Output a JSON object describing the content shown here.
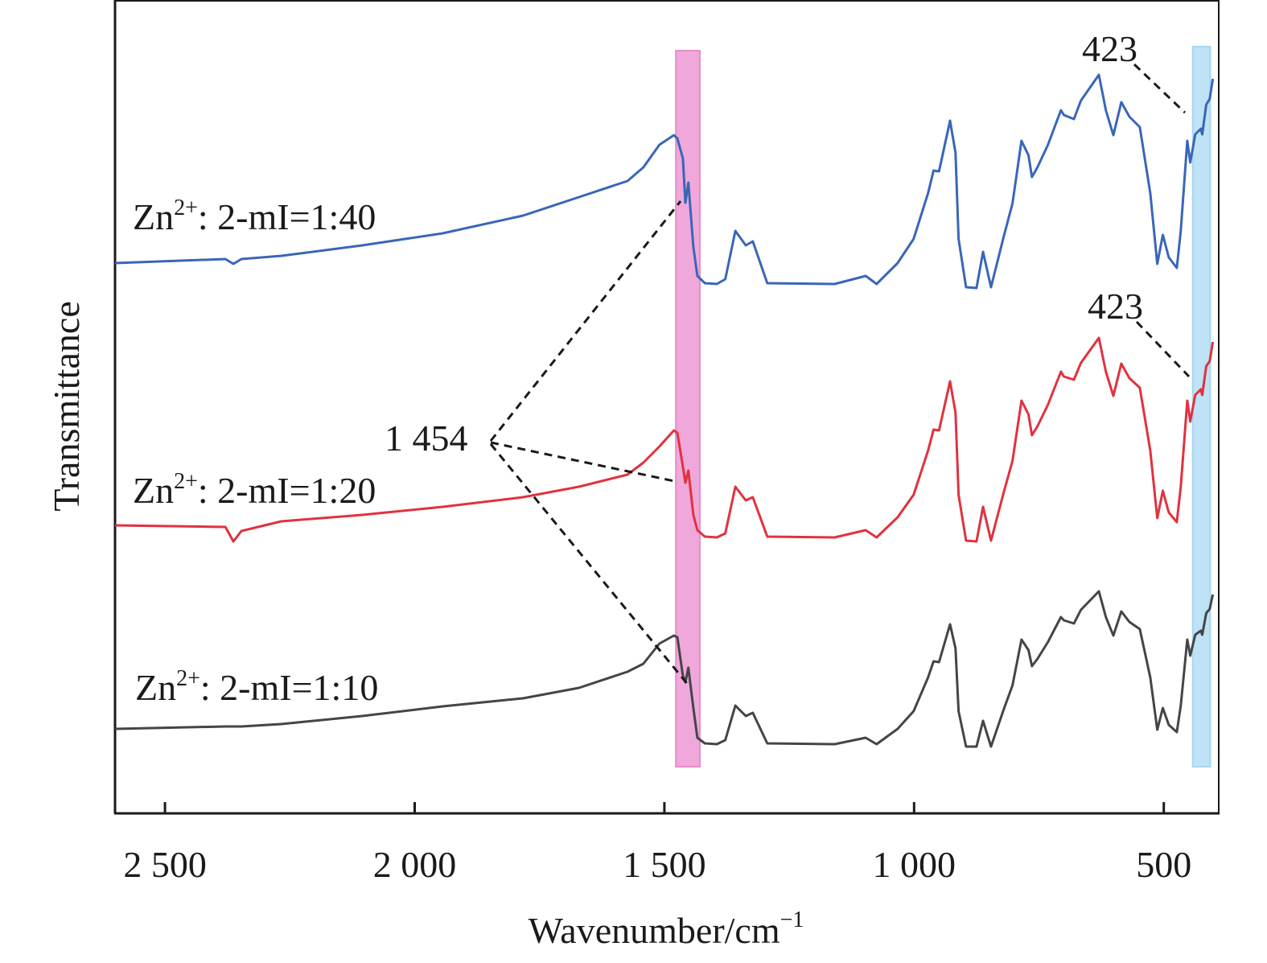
{
  "chart_data": {
    "type": "line",
    "title": "",
    "xlabel": {
      "base": "Wavenumber/cm",
      "sup": "−1"
    },
    "ylabel": "Transmittance",
    "xlim": [
      2600,
      390
    ],
    "x_reversed": true,
    "ylim": [
      0,
      101
    ],
    "y_units": "arbitrary (offset traces)",
    "grid": false,
    "x_ticks": [
      {
        "value": 2500,
        "label": "2 500"
      },
      {
        "value": 2000,
        "label": "2 000"
      },
      {
        "value": 1500,
        "label": "1 500"
      },
      {
        "value": 1000,
        "label": "1 000"
      },
      {
        "value": 500,
        "label": "500"
      }
    ],
    "x": [
      2600,
      2379,
      2363,
      2347,
      2267,
      2105,
      1944,
      1783,
      1671,
      1574,
      1542,
      1510,
      1481,
      1474,
      1463,
      1458,
      1452,
      1442,
      1434,
      1419,
      1395,
      1378,
      1358,
      1337,
      1323,
      1294,
      1159,
      1097,
      1075,
      1033,
      1001,
      972,
      961,
      950,
      928,
      917,
      911,
      896,
      875,
      862,
      846,
      820,
      803,
      785,
      771,
      764,
      753,
      732,
      706,
      700,
      680,
      666,
      630,
      616,
      601,
      585,
      569,
      548,
      527,
      513,
      502,
      490,
      474,
      466,
      453,
      447,
      437,
      426,
      423,
      415,
      408,
      402
    ],
    "series": [
      {
        "name": "Zn2+: 2-mI=1:40",
        "label": {
          "base": "Zn",
          "sup": "2+",
          "rest": ": 2-mI=1:40"
        },
        "color": "#3a66b8",
        "values": [
          68.3,
          68.8,
          68.2,
          68.8,
          69.2,
          70.5,
          72.0,
          74.2,
          76.5,
          78.5,
          80.2,
          83.0,
          84.2,
          83.8,
          81.3,
          75.8,
          78.3,
          70.3,
          66.7,
          65.8,
          65.7,
          66.3,
          72.3,
          70.5,
          71.0,
          65.8,
          65.7,
          66.7,
          65.7,
          68.3,
          71.3,
          77.0,
          79.8,
          79.7,
          86.0,
          82.0,
          71.3,
          65.3,
          65.2,
          69.7,
          65.3,
          71.7,
          75.7,
          83.5,
          81.7,
          79.0,
          80.2,
          83.0,
          87.3,
          86.7,
          86.2,
          88.5,
          91.7,
          87.3,
          84.2,
          88.3,
          86.5,
          85.2,
          77.0,
          68.2,
          71.8,
          69.0,
          67.7,
          72.3,
          83.5,
          80.8,
          84.3,
          85.0,
          84.3,
          88.0,
          88.7,
          91.2
        ]
      },
      {
        "name": "Zn2+: 2-mI=1:20",
        "label": {
          "base": "Zn",
          "sup": "2+",
          "rest": ": 2-mI=1:20"
        },
        "color": "#e0323f",
        "values": [
          35.7,
          35.5,
          33.7,
          35.0,
          36.2,
          37.0,
          38.0,
          39.2,
          40.5,
          42.0,
          43.5,
          45.5,
          47.5,
          47.2,
          43.0,
          41.0,
          42.5,
          37.0,
          35.1,
          34.3,
          34.2,
          34.7,
          40.5,
          38.8,
          39.2,
          34.3,
          34.2,
          35.1,
          34.2,
          36.7,
          39.5,
          45.0,
          47.6,
          47.5,
          53.6,
          49.7,
          39.5,
          33.8,
          33.7,
          38.0,
          33.8,
          39.9,
          43.7,
          51.2,
          49.5,
          46.9,
          48.0,
          50.7,
          54.8,
          54.2,
          53.8,
          55.9,
          59.0,
          54.8,
          51.8,
          55.8,
          54.0,
          52.8,
          45.0,
          36.6,
          40.0,
          37.3,
          36.1,
          40.5,
          51.2,
          48.6,
          51.9,
          52.6,
          51.9,
          55.5,
          56.1,
          58.5
        ]
      },
      {
        "name": "Zn2+: 2-mI=1:10",
        "label": {
          "base": "Zn",
          "sup": "2+",
          "rest": ": 2-mI=1:10"
        },
        "color": "#454548",
        "values": [
          10.4,
          10.7,
          10.7,
          10.7,
          11.0,
          12.0,
          13.2,
          14.2,
          15.5,
          17.5,
          18.5,
          21.0,
          22.0,
          21.8,
          17.0,
          16.2,
          18.0,
          13.0,
          9.3,
          8.6,
          8.5,
          9.0,
          13.3,
          12.0,
          12.4,
          8.6,
          8.5,
          9.3,
          8.5,
          10.4,
          12.6,
          16.8,
          18.8,
          18.7,
          23.4,
          20.4,
          12.6,
          8.2,
          8.2,
          11.4,
          8.2,
          12.9,
          15.8,
          21.5,
          20.2,
          18.2,
          19.1,
          21.2,
          24.3,
          23.9,
          23.5,
          25.2,
          27.5,
          24.3,
          22.0,
          25.0,
          23.7,
          22.8,
          16.8,
          10.3,
          13.0,
          10.9,
          10.0,
          13.3,
          21.5,
          19.5,
          22.1,
          22.6,
          22.1,
          24.8,
          25.3,
          27.1
        ]
      }
    ],
    "highlight_bands": [
      {
        "name": "1454 band",
        "range": [
          1477,
          1429
        ],
        "color": "#f0a8da"
      },
      {
        "name": "423 band",
        "range": [
          442,
          407
        ],
        "color": "#bfe3f6"
      }
    ],
    "annotations": [
      {
        "text": "1 454"
      },
      {
        "text": "423"
      },
      {
        "text": "423"
      }
    ]
  }
}
